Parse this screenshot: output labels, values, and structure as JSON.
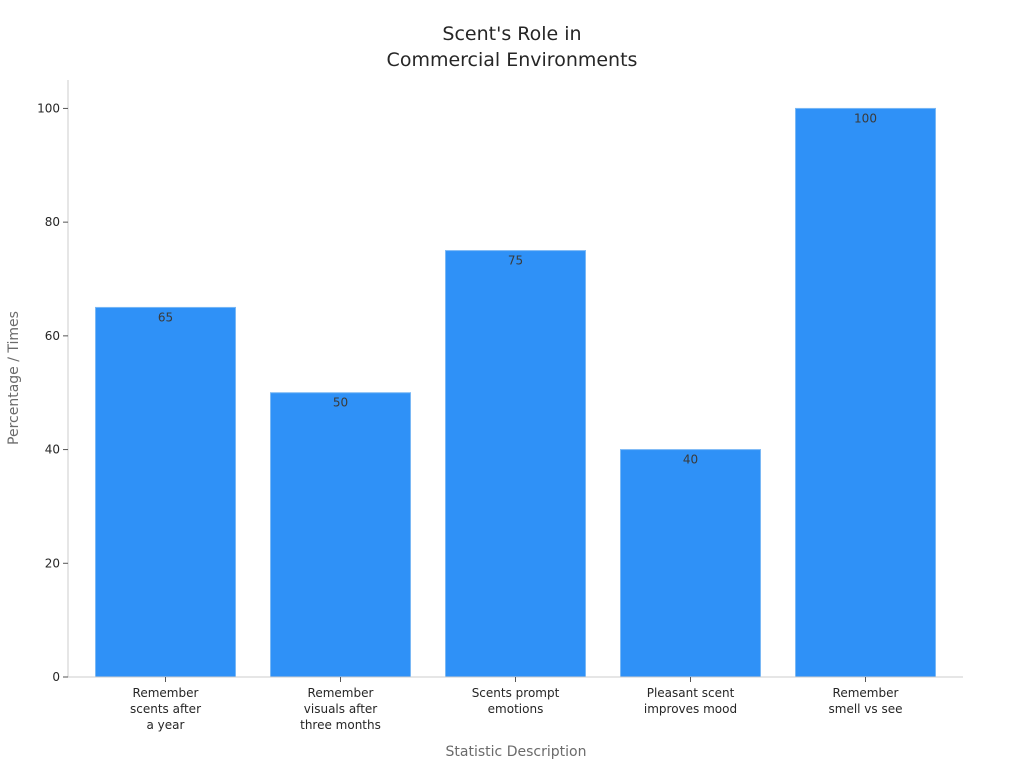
{
  "chart_data": {
    "type": "bar",
    "title": [
      "Scent's Role in",
      "Commercial Environments"
    ],
    "xlabel": "Statistic Description",
    "ylabel": "Percentage / Times",
    "categories": [
      [
        "Remember",
        "scents after",
        "a year"
      ],
      [
        "Remember",
        "visuals after",
        "three months"
      ],
      [
        "Scents prompt",
        "emotions"
      ],
      [
        "Pleasant scent",
        "improves mood"
      ],
      [
        "Remember",
        "smell vs see"
      ]
    ],
    "values": [
      65,
      50,
      75,
      40,
      100
    ],
    "data_labels": [
      "65",
      "50",
      "75",
      "40",
      "100"
    ],
    "ylim": [
      0,
      105
    ],
    "yticks": [
      0,
      20,
      40,
      60,
      80,
      100
    ],
    "grid": false,
    "legend": "none",
    "colors": {
      "bar": "#2f91f7",
      "bar_edge": "#7ab8f5"
    }
  }
}
